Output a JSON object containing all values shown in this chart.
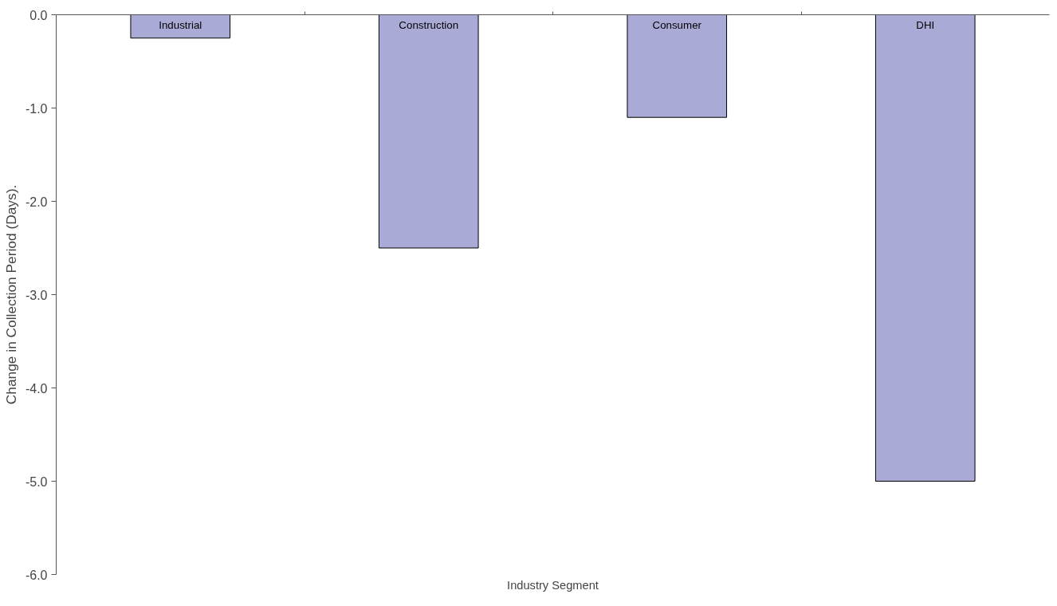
{
  "chart_data": {
    "type": "bar",
    "xlabel": "Industry Segment",
    "ylabel": "Change in Collection Period (Days).",
    "categories": [
      "Industrial",
      "Construction",
      "Consumer",
      "DHI"
    ],
    "values": [
      -0.25,
      -2.5,
      -1.1,
      -5.0
    ],
    "color": "#aaaad6",
    "ylim": [
      -6,
      0
    ],
    "yticks": [
      {
        "value": -6,
        "label": "-6.0"
      },
      {
        "value": -5,
        "label": "-5.0"
      },
      {
        "value": -4,
        "label": "-4.0"
      },
      {
        "value": -3,
        "label": "-3.0"
      },
      {
        "value": -2,
        "label": "-2.0"
      },
      {
        "value": -1,
        "label": "-1.0"
      },
      {
        "value": 0,
        "label": "0.0"
      }
    ],
    "grid": false
  }
}
